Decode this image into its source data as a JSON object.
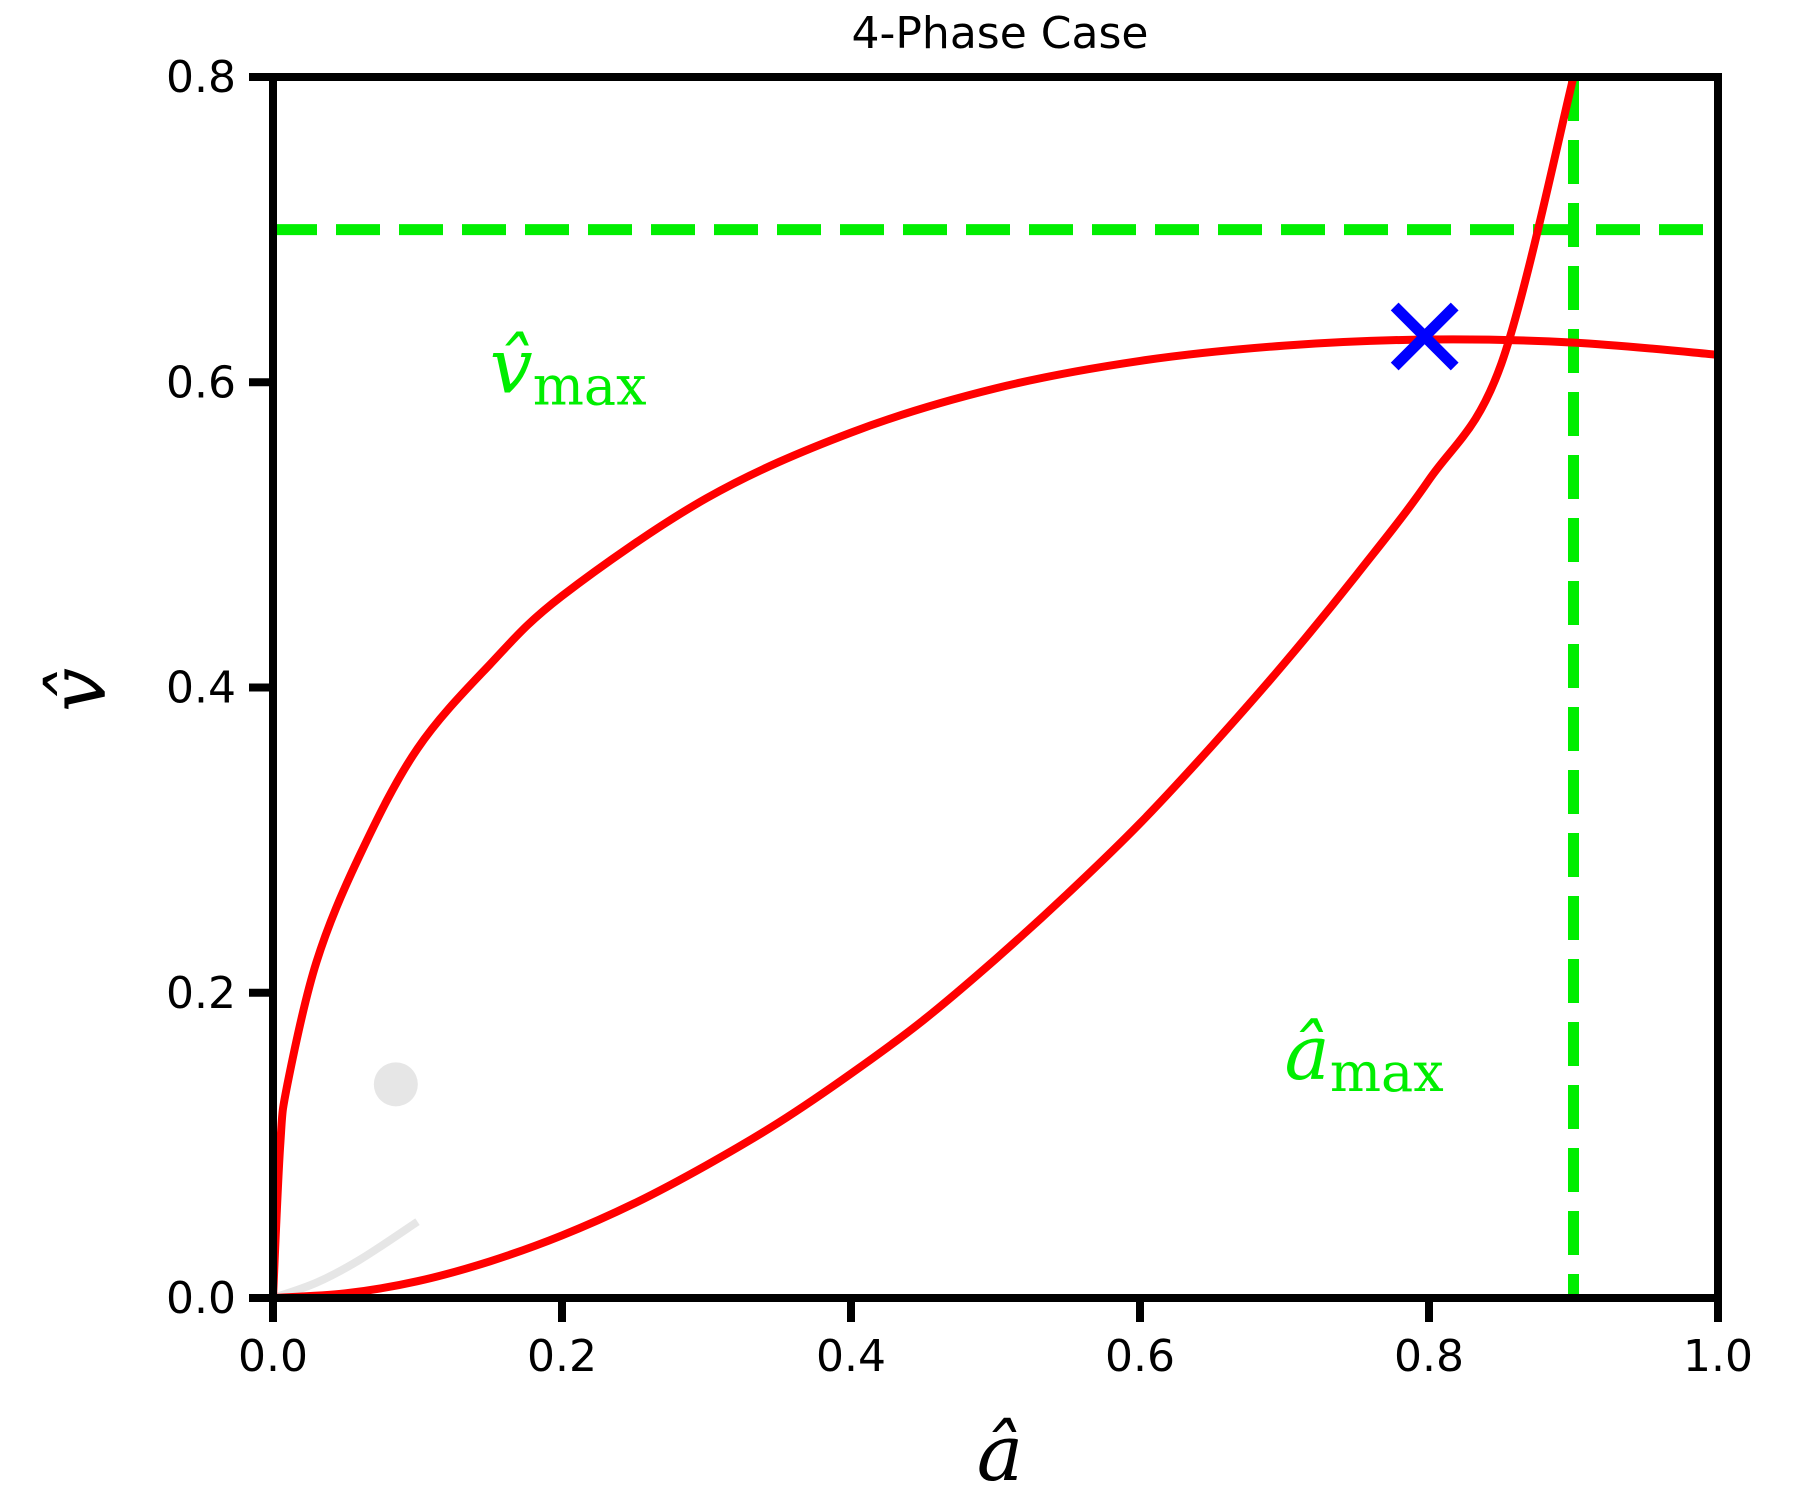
{
  "chart_data": {
    "type": "line",
    "title": "4-Phase Case",
    "xlabel": "â",
    "ylabel": "v̂",
    "xlim": [
      0.0,
      1.0
    ],
    "ylim": [
      0.0,
      0.8
    ],
    "xticks": [
      "0.0",
      "0.2",
      "0.4",
      "0.6",
      "0.8",
      "1.0"
    ],
    "yticks": [
      "0.0",
      "0.2",
      "0.4",
      "0.6",
      "0.8"
    ],
    "grid": false,
    "series": [
      {
        "color": "#ff0000",
        "x": [
          0.0,
          0.005,
          0.01,
          0.03,
          0.06,
          0.1,
          0.15,
          0.2,
          0.3,
          0.4,
          0.5,
          0.6,
          0.7,
          0.8,
          0.9,
          1.0
        ],
        "y": [
          0.0,
          0.1,
          0.14,
          0.22,
          0.29,
          0.36,
          0.415,
          0.46,
          0.524,
          0.567,
          0.596,
          0.614,
          0.624,
          0.628,
          0.626,
          0.618
        ]
      },
      {
        "color": "#ff0000",
        "x": [
          0.0,
          0.05,
          0.1,
          0.15,
          0.2,
          0.25,
          0.3,
          0.35,
          0.4,
          0.45,
          0.5,
          0.55,
          0.6,
          0.65,
          0.7,
          0.75,
          0.8,
          0.85,
          0.9
        ],
        "y": [
          0.0,
          0.003,
          0.011,
          0.024,
          0.041,
          0.062,
          0.087,
          0.115,
          0.147,
          0.182,
          0.222,
          0.265,
          0.311,
          0.362,
          0.416,
          0.474,
          0.536,
          0.612,
          0.8
        ]
      }
    ],
    "reference_lines": [
      {
        "orientation": "horizontal",
        "value": 0.7,
        "color": "#00ee00",
        "style": "dashed"
      },
      {
        "orientation": "vertical",
        "value": 0.9,
        "color": "#00ee00",
        "style": "dashed"
      }
    ],
    "marker": {
      "x": 0.797,
      "y": 0.63,
      "symbol": "x",
      "color": "#0000ff"
    },
    "annotations": [
      {
        "main": "v̂",
        "sub": "max",
        "x": 0.15,
        "y": 0.6,
        "color": "#00ee00"
      },
      {
        "main": "â",
        "sub": "max",
        "x": 0.7,
        "y": 0.15,
        "color": "#00ee00"
      }
    ],
    "faint_marks": {
      "color": "#e6e6e6",
      "dot": {
        "x": 0.085,
        "y": 0.14
      },
      "curve": {
        "x": [
          0.0,
          0.03,
          0.06,
          0.1
        ],
        "y": [
          0.0,
          0.01,
          0.025,
          0.05
        ]
      }
    }
  }
}
